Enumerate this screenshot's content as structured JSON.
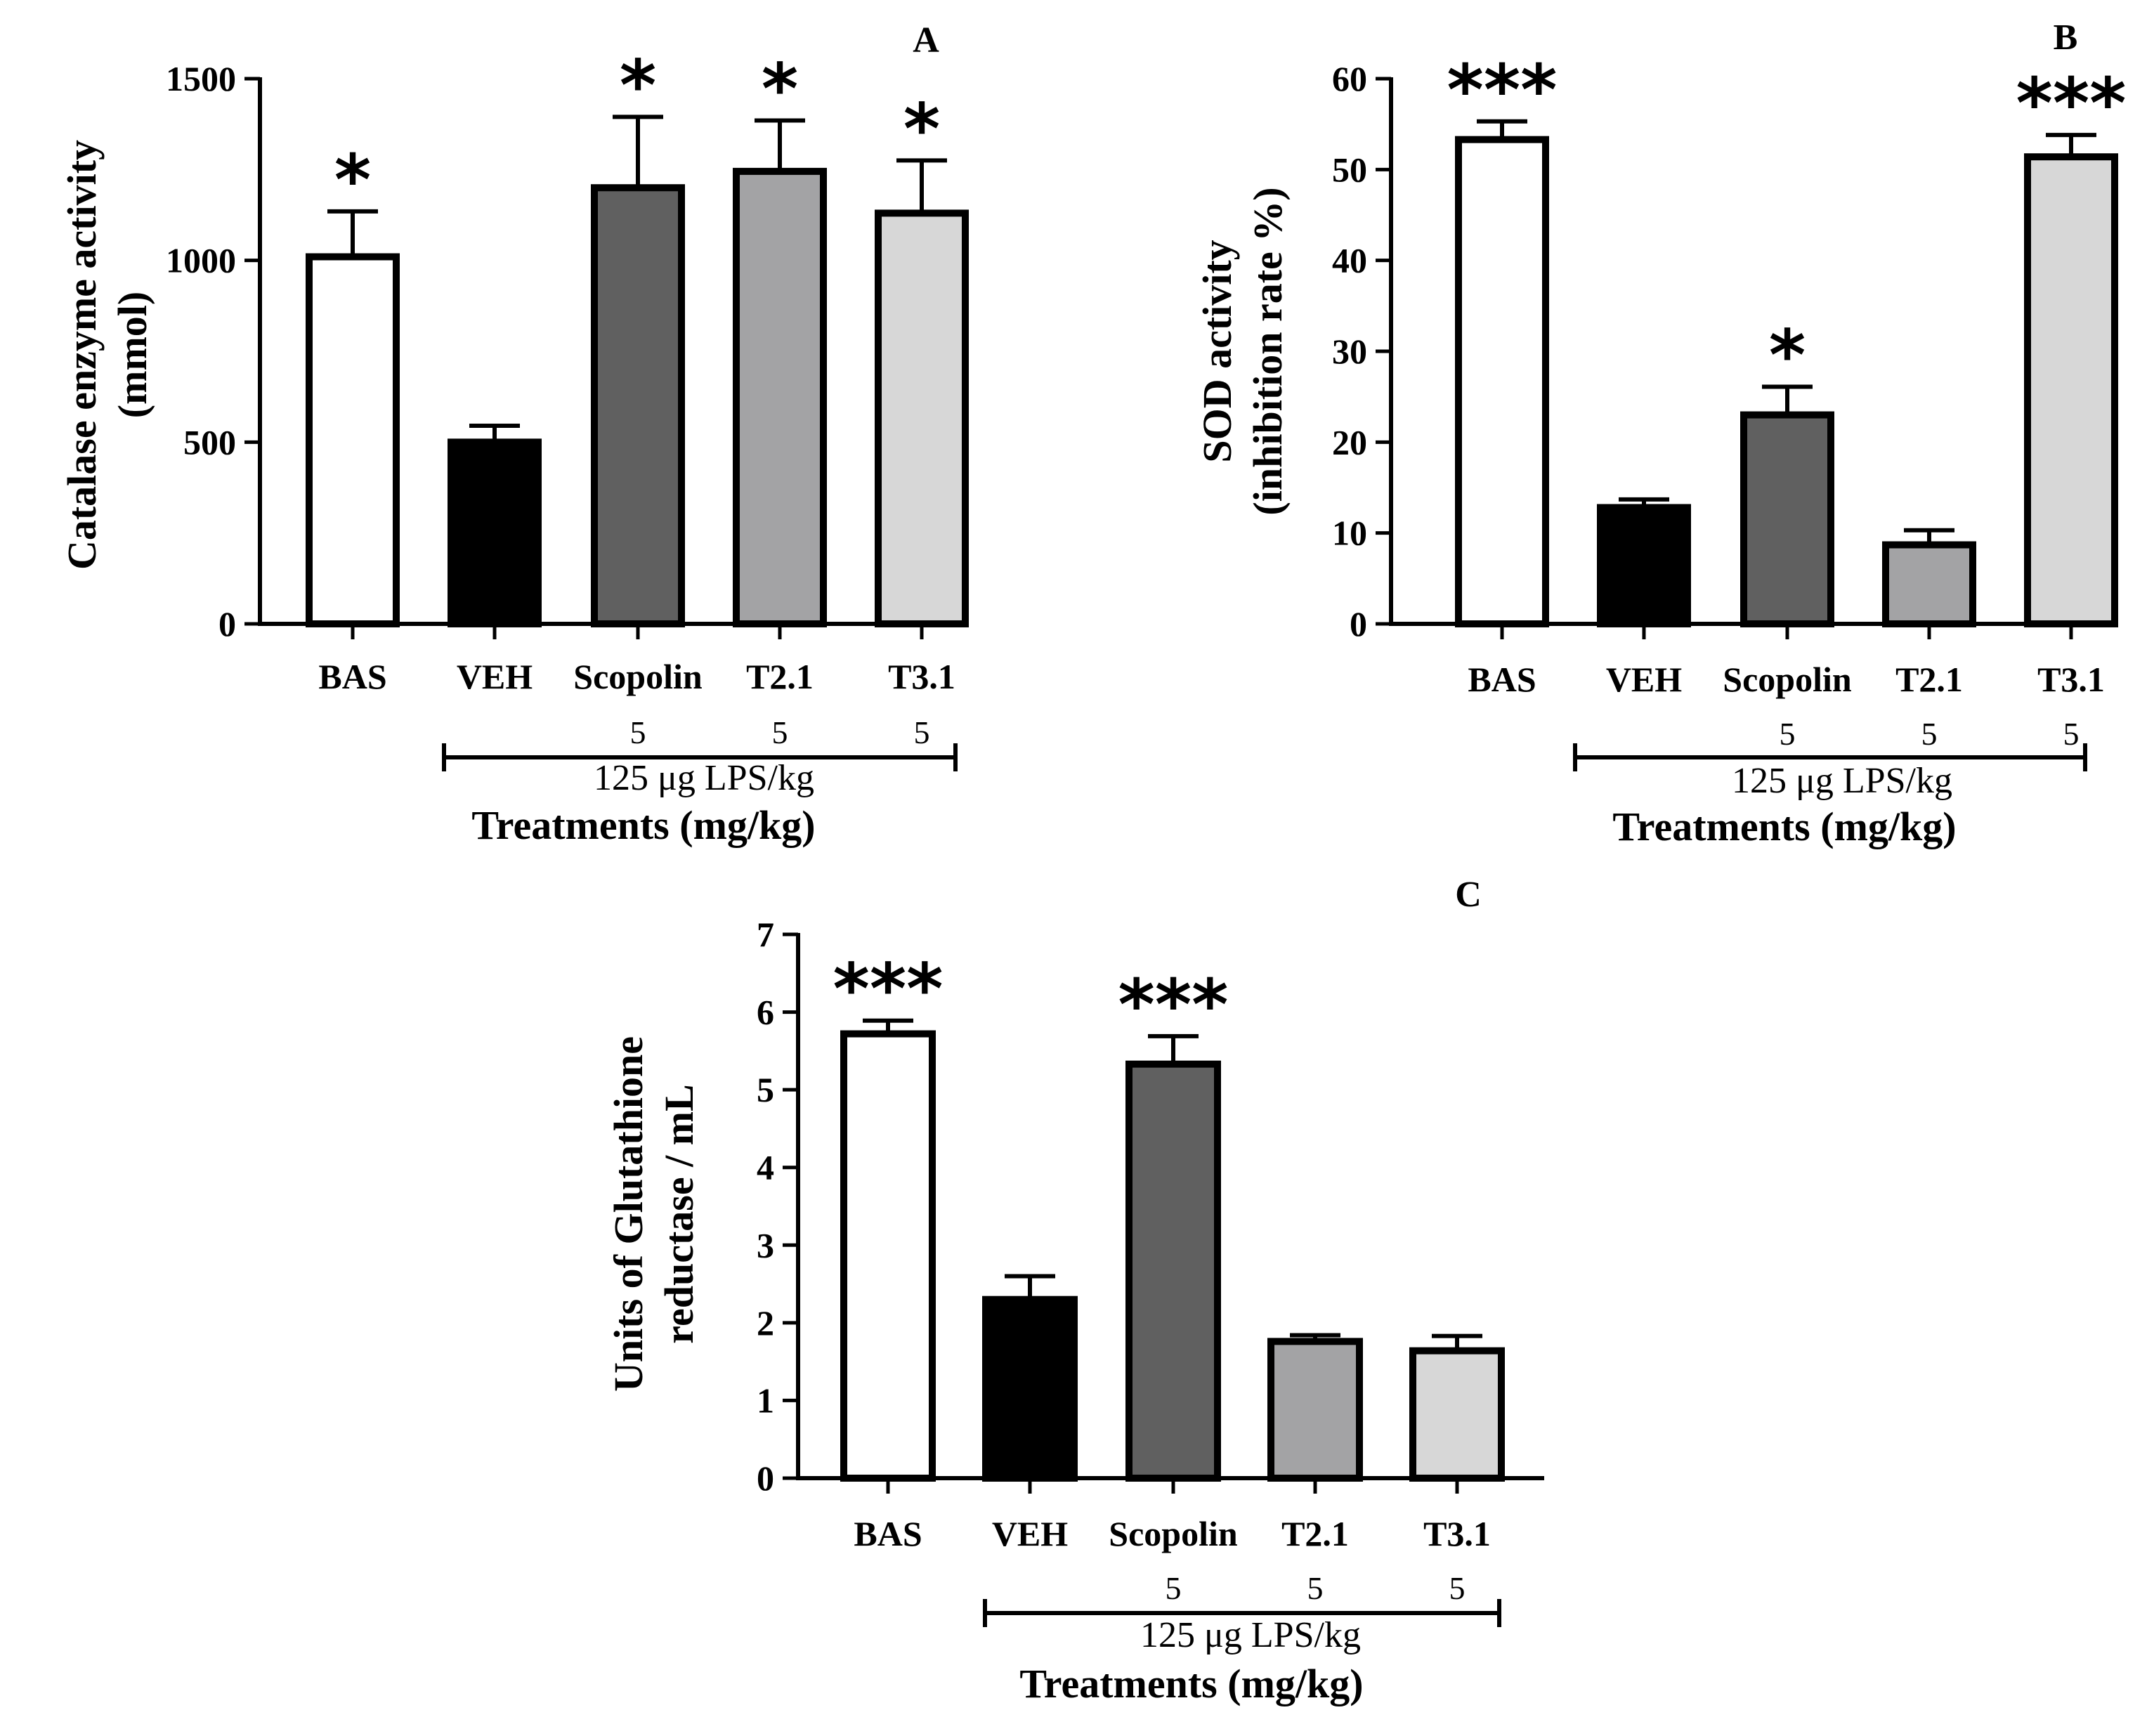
{
  "chart_data": [
    {
      "type": "bar",
      "panel": "A",
      "ylabel_lines": [
        "Catalase enzyme activity",
        "(mmol)"
      ],
      "xlabel": "Treatments (mg/kg)",
      "ylim": [
        0,
        1500
      ],
      "yticks": [
        0,
        500,
        1000,
        1500
      ],
      "categories": [
        "BAS",
        "VEH",
        "Scopolin",
        "T2.1",
        "T3.1"
      ],
      "values": [
        1010,
        500,
        1200,
        1245,
        1130
      ],
      "errors": [
        125,
        45,
        195,
        140,
        145
      ],
      "significance": [
        "*",
        "",
        "*",
        "*",
        "*"
      ],
      "doses": [
        "",
        "",
        "5",
        "5",
        "5"
      ],
      "bracket_label": "125 μg LPS/kg",
      "bar_colors": [
        "#ffffff",
        "#000000",
        "#606060",
        "#a3a3a5",
        "#d7d7d7"
      ]
    },
    {
      "type": "bar",
      "panel": "B",
      "ylabel_lines": [
        "SOD activity",
        "(inhibition rate %)"
      ],
      "xlabel": "Treatments (mg/kg)",
      "ylim": [
        0,
        60
      ],
      "yticks": [
        0,
        10,
        20,
        30,
        40,
        50,
        60
      ],
      "categories": [
        "BAS",
        "VEH",
        "Scopolin",
        "T2.1",
        "T3.1"
      ],
      "values": [
        53.3,
        12.8,
        23.0,
        8.7,
        51.4
      ],
      "errors": [
        2.0,
        0.9,
        3.1,
        1.6,
        2.4
      ],
      "significance": [
        "***",
        "",
        "*",
        "",
        "***"
      ],
      "doses": [
        "",
        "",
        "5",
        "5",
        "5"
      ],
      "bracket_label": "125 μg LPS/kg",
      "bar_colors": [
        "#ffffff",
        "#000000",
        "#606060",
        "#a3a3a5",
        "#d7d7d7"
      ]
    },
    {
      "type": "bar",
      "panel": "C",
      "ylabel_lines": [
        "Units of Glutathione",
        "reductase / mL"
      ],
      "xlabel": "Treatments (mg/kg)",
      "ylim": [
        0,
        7
      ],
      "yticks": [
        0,
        1,
        2,
        3,
        4,
        5,
        6,
        7
      ],
      "categories": [
        "BAS",
        "VEH",
        "Scopolin",
        "T2.1",
        "T3.1"
      ],
      "values": [
        5.72,
        2.3,
        5.33,
        1.76,
        1.64
      ],
      "errors": [
        0.17,
        0.3,
        0.36,
        0.08,
        0.19
      ],
      "significance": [
        "***",
        "",
        "***",
        "",
        ""
      ],
      "doses": [
        "",
        "",
        "5",
        "5",
        "5"
      ],
      "bracket_label": "125 μg LPS/kg",
      "bar_colors": [
        "#ffffff",
        "#000000",
        "#606060",
        "#a3a3a5",
        "#d7d7d7"
      ]
    }
  ]
}
